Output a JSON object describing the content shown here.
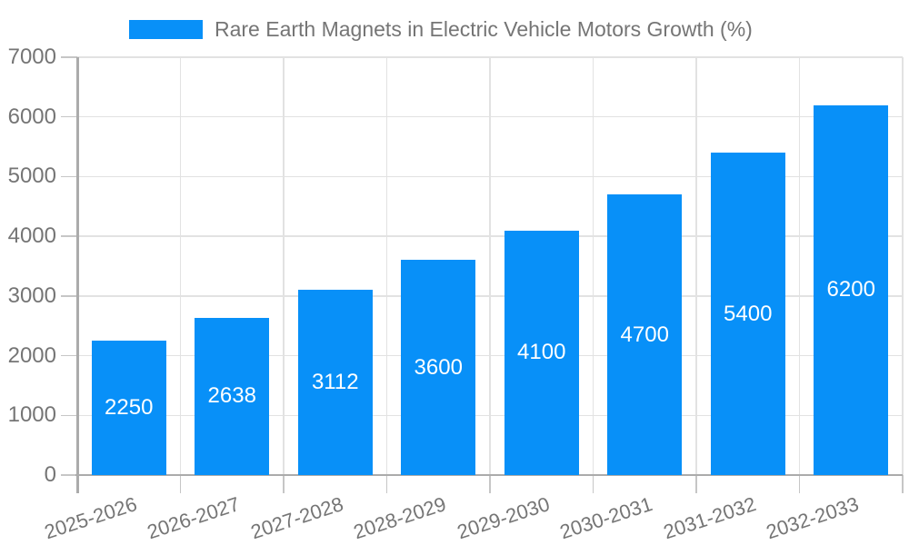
{
  "chart_data": {
    "type": "bar",
    "title": "Rare Earth Magnets in Electric Vehicle Motors Growth (%)",
    "legend": [
      "Rare Earth Magnets in Electric Vehicle Motors Growth (%)"
    ],
    "legend_position": "top",
    "categories": [
      "2025-2026",
      "2026-2027",
      "2027-2028",
      "2028-2029",
      "2029-2030",
      "2030-2031",
      "2031-2032",
      "2032-2033"
    ],
    "values": [
      2250,
      2638,
      3112,
      3600,
      4100,
      4700,
      5400,
      6200
    ],
    "value_labels": [
      "2250",
      "2638",
      "3112",
      "3600",
      "4100",
      "4700",
      "5400",
      "6200"
    ],
    "xlabel": "",
    "ylabel": "",
    "ylim": [
      0,
      7000
    ],
    "yticks": [
      0,
      1000,
      2000,
      3000,
      4000,
      5000,
      6000,
      7000
    ],
    "grid": true,
    "colors": {
      "bar": "#0890F8",
      "value_label": "#FFFFFF",
      "axis_text": "#757575",
      "grid_line": "#E2E2E2",
      "axis_line": "#ABABAB",
      "tick_line": "#C6C6C6",
      "background": "#FFFFFF"
    }
  }
}
